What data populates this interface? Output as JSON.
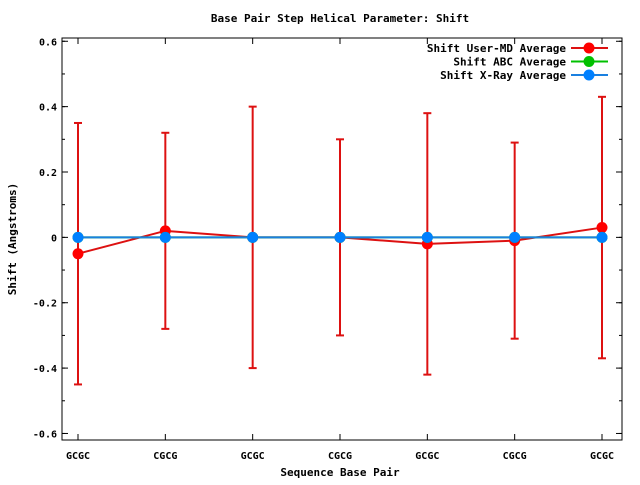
{
  "chart_data": {
    "type": "line",
    "title": "Base Pair Step Helical Parameter: Shift",
    "xlabel": "Sequence Base Pair",
    "ylabel": "Shift (Angstroms)",
    "categories": [
      "GCGC",
      "CGCG",
      "GCGC",
      "CGCG",
      "GCGC",
      "CGCG",
      "GCGC"
    ],
    "ylim": [
      -0.62,
      0.61
    ],
    "yticks": [
      "0.6",
      "0.4",
      "0.2",
      "0",
      "-0.2",
      "-0.4",
      "-0.6"
    ],
    "ytick_values": [
      0.6,
      0.4,
      0.2,
      0,
      -0.2,
      -0.4,
      -0.6
    ],
    "grid": false,
    "legend_position": "top-right",
    "series": [
      {
        "name": "Shift User-MD Average",
        "color": "#ff0000",
        "line_color": "#dd1111",
        "values": [
          -0.05,
          0.02,
          0.0,
          0.0,
          -0.02,
          -0.01,
          0.03
        ],
        "error_low": [
          -0.45,
          -0.28,
          -0.4,
          -0.3,
          -0.42,
          -0.31,
          -0.37
        ],
        "error_high": [
          0.35,
          0.32,
          0.4,
          0.3,
          0.38,
          0.29,
          0.43
        ]
      },
      {
        "name": "Shift ABC Average",
        "color": "#00c000",
        "line_color": "#00c000",
        "values": [
          0,
          0,
          0,
          0,
          0,
          0,
          0
        ]
      },
      {
        "name": "Shift X-Ray Average",
        "color": "#0080ff",
        "line_color": "#1a80e0",
        "values": [
          0,
          0,
          0,
          0,
          0,
          0,
          0
        ]
      }
    ]
  }
}
